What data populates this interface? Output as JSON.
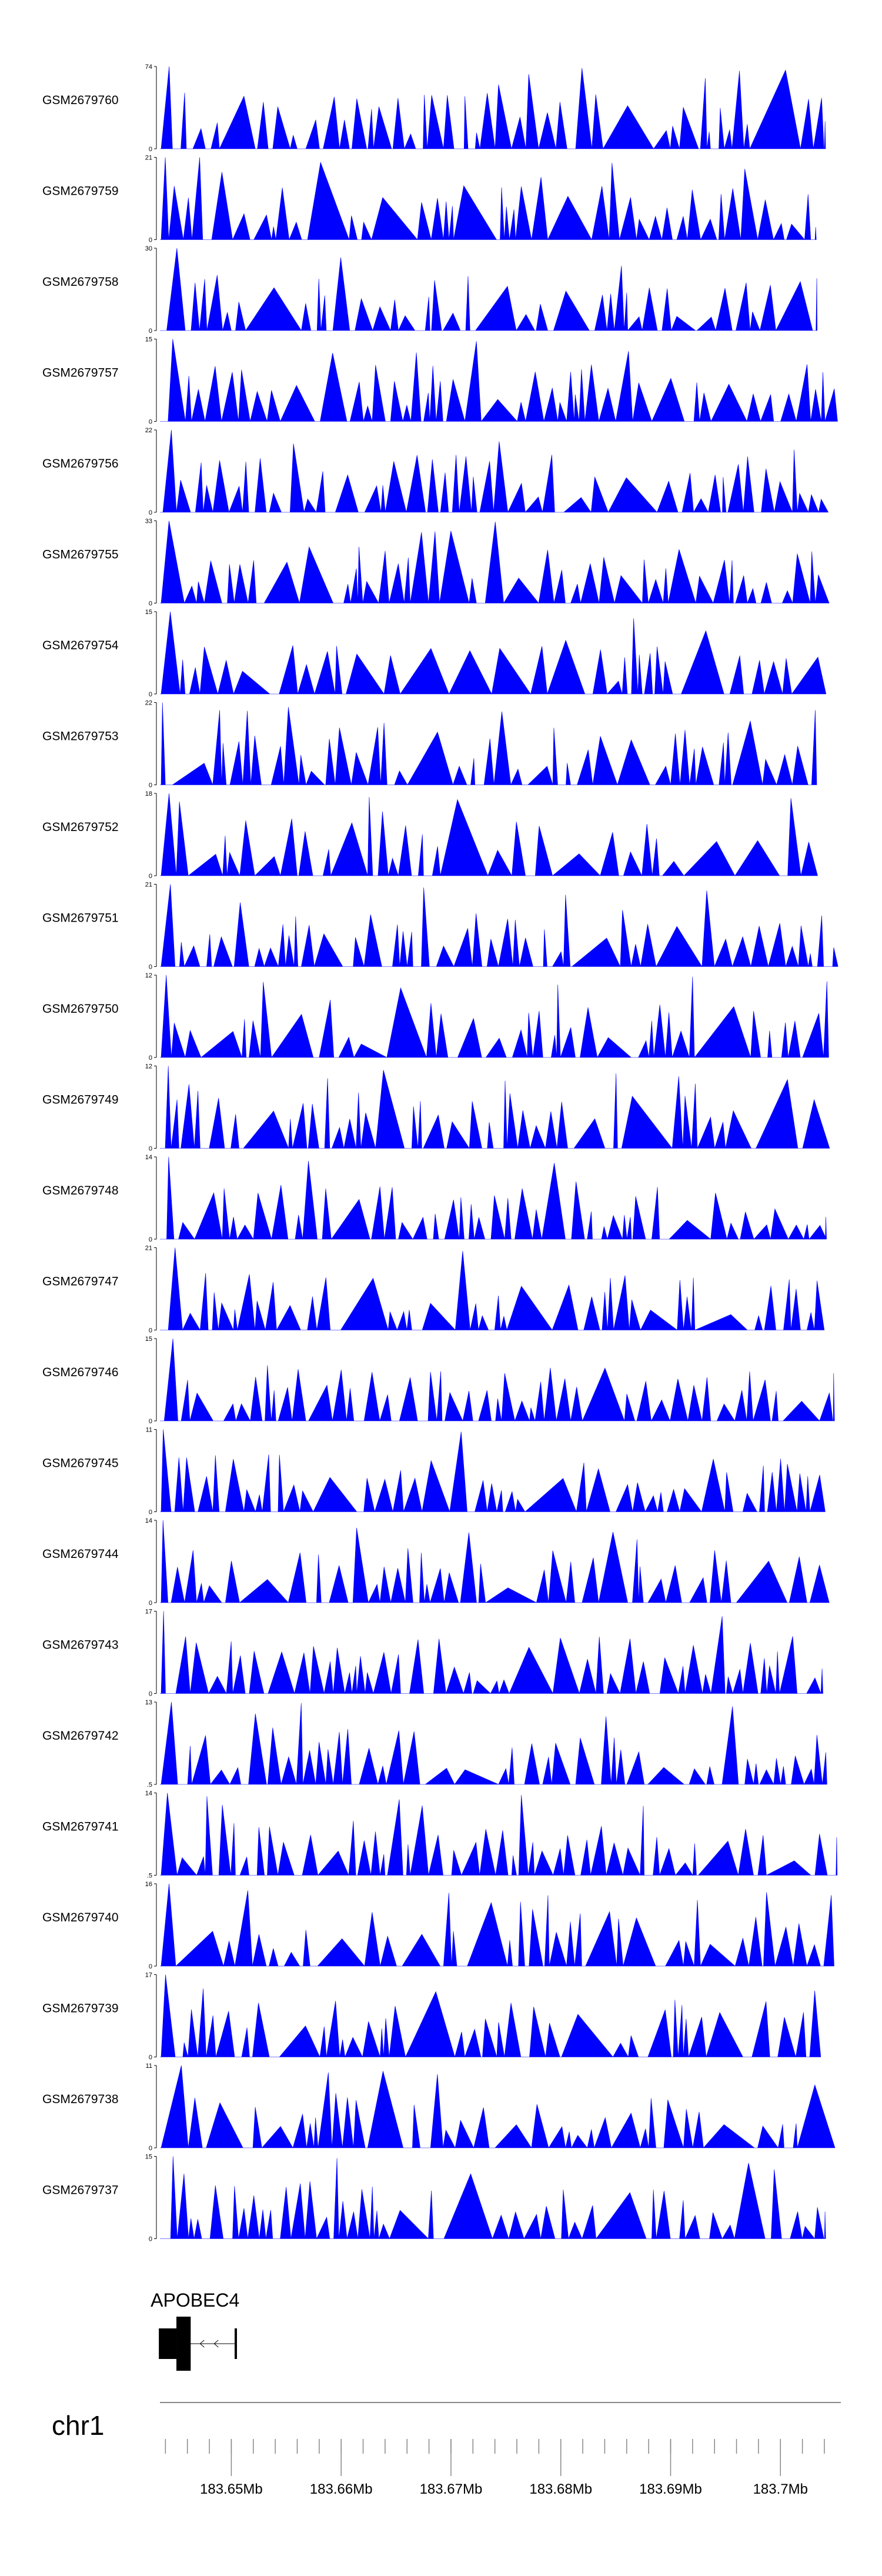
{
  "chart_data": {
    "type": "area",
    "title": "",
    "xlabel": "",
    "ylabel": "",
    "genome": {
      "chromosome": "chr1",
      "xlim_mb": [
        183.6435,
        183.7055
      ]
    },
    "colors": {
      "signal": "#0000ff",
      "axis": "#000000",
      "gene": "#000000",
      "genome_axis": "#888888"
    },
    "tracks": [
      {
        "name": "GSM2679760",
        "ymin": "0",
        "ymax": "74",
        "max_value": 74,
        "seed": 11
      },
      {
        "name": "GSM2679759",
        "ymin": "0",
        "ymax": "21",
        "max_value": 21,
        "seed": 23
      },
      {
        "name": "GSM2679758",
        "ymin": "0",
        "ymax": "30",
        "max_value": 30,
        "seed": 37
      },
      {
        "name": "GSM2679757",
        "ymin": "0",
        "ymax": "15",
        "max_value": 15,
        "seed": 41
      },
      {
        "name": "GSM2679756",
        "ymin": "0",
        "ymax": "22",
        "max_value": 22,
        "seed": 53
      },
      {
        "name": "GSM2679755",
        "ymin": "0",
        "ymax": "33",
        "max_value": 33,
        "seed": 67
      },
      {
        "name": "GSM2679754",
        "ymin": "0",
        "ymax": "15",
        "max_value": 15,
        "seed": 71
      },
      {
        "name": "GSM2679753",
        "ymin": "0",
        "ymax": "22",
        "max_value": 22,
        "seed": 83
      },
      {
        "name": "GSM2679752",
        "ymin": "0",
        "ymax": "18",
        "max_value": 18,
        "seed": 97
      },
      {
        "name": "GSM2679751",
        "ymin": "0",
        "ymax": "21",
        "max_value": 21,
        "seed": 101
      },
      {
        "name": "GSM2679750",
        "ymin": "0",
        "ymax": "12",
        "max_value": 12,
        "seed": 113
      },
      {
        "name": "GSM2679749",
        "ymin": "0",
        "ymax": "12",
        "max_value": 12,
        "seed": 127
      },
      {
        "name": "GSM2679748",
        "ymin": "0",
        "ymax": "14",
        "max_value": 14,
        "seed": 131
      },
      {
        "name": "GSM2679747",
        "ymin": "0",
        "ymax": "21",
        "max_value": 21,
        "seed": 149
      },
      {
        "name": "GSM2679746",
        "ymin": "0",
        "ymax": "15",
        "max_value": 15,
        "seed": 151
      },
      {
        "name": "GSM2679745",
        "ymin": "0",
        "ymax": "11",
        "max_value": 11,
        "seed": 163
      },
      {
        "name": "GSM2679744",
        "ymin": "0",
        "ymax": "14",
        "max_value": 14,
        "seed": 173
      },
      {
        "name": "GSM2679743",
        "ymin": "0",
        "ymax": "17",
        "max_value": 17,
        "seed": 181
      },
      {
        "name": "GSM2679742",
        "ymin": ".5",
        "ymax": "13",
        "max_value": 13,
        "seed": 191
      },
      {
        "name": "GSM2679741",
        "ymin": ".5",
        "ymax": "14",
        "max_value": 14,
        "seed": 193
      },
      {
        "name": "GSM2679740",
        "ymin": "0",
        "ymax": "16",
        "max_value": 16,
        "seed": 197
      },
      {
        "name": "GSM2679739",
        "ymin": "0",
        "ymax": "17",
        "max_value": 17,
        "seed": 199
      },
      {
        "name": "GSM2679738",
        "ymin": "0",
        "ymax": "11",
        "max_value": 11,
        "seed": 211
      },
      {
        "name": "GSM2679737",
        "ymin": "0",
        "ymax": "15",
        "max_value": 15,
        "seed": 223
      }
    ],
    "gene": {
      "label": "APOBEC4",
      "displayed_label": "APOBEC4",
      "strand": "-",
      "start_mb": 183.6434,
      "end_mb": 183.6505,
      "exons": [
        {
          "start_mb": 183.6434,
          "end_mb": 183.645,
          "type": "utr"
        },
        {
          "start_mb": 183.645,
          "end_mb": 183.6463,
          "type": "coding"
        },
        {
          "start_mb": 183.6503,
          "end_mb": 183.6505,
          "type": "utr"
        }
      ]
    },
    "x_tick_labels": [
      "183.65Mb",
      "183.66Mb",
      "183.67Mb",
      "183.68Mb",
      "183.69Mb",
      "183.7Mb"
    ],
    "x_ticks_mb": [
      183.65,
      183.66,
      183.67,
      183.68,
      183.69,
      183.7
    ],
    "x_minor_step_mb": 0.002
  }
}
